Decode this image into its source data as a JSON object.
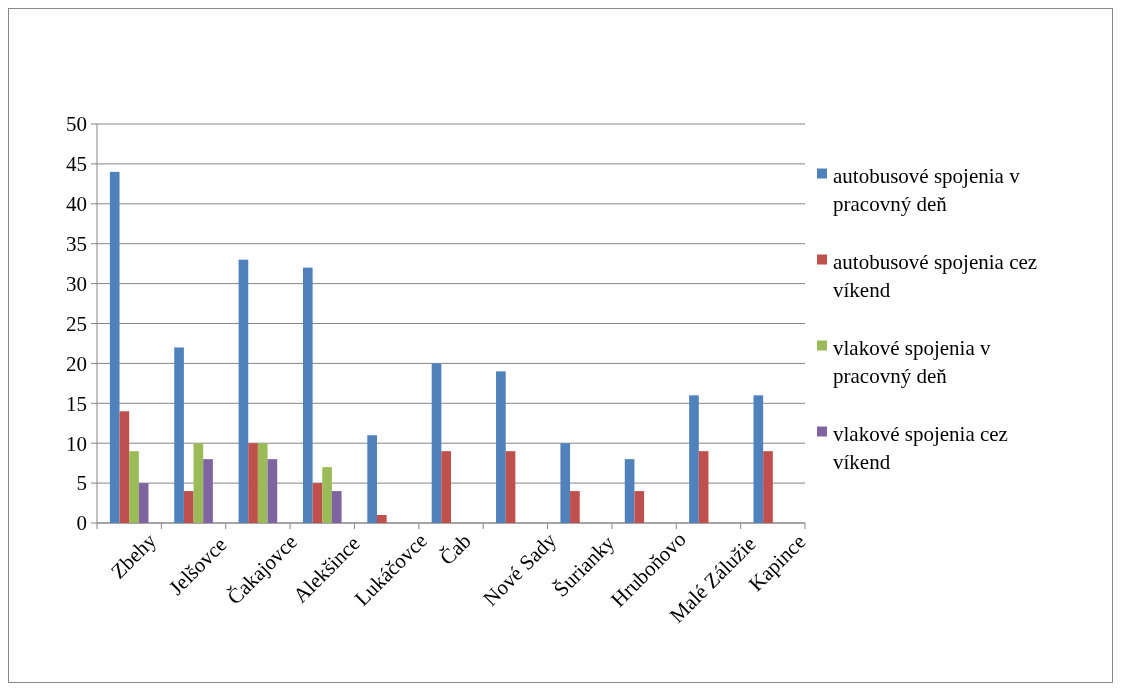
{
  "chart_data": {
    "type": "bar",
    "categories": [
      "Zbehy",
      "Jelšovce",
      "Čakajovce",
      "Alekšince",
      "Lukáčovce",
      "Čab",
      "Nové Sady",
      "Šurianky",
      "Hruboňovo",
      "Malé Zálužie",
      "Kapince"
    ],
    "series": [
      {
        "name": "autobusové spojenia  v pracovný deň",
        "color": "#4f81bd",
        "values": [
          44,
          22,
          33,
          32,
          11,
          20,
          19,
          10,
          8,
          16,
          16
        ]
      },
      {
        "name": "autobusové spojenia  cez víkend",
        "color": "#c0504d",
        "values": [
          14,
          4,
          10,
          5,
          1,
          9,
          9,
          4,
          4,
          9,
          9
        ]
      },
      {
        "name": "vlakové spojenia v pracovný deň",
        "color": "#9bbb59",
        "values": [
          9,
          10,
          10,
          7,
          0,
          0,
          0,
          0,
          0,
          0,
          0
        ]
      },
      {
        "name": "vlakové spojenia cez víkend",
        "color": "#8064a2",
        "values": [
          5,
          8,
          8,
          4,
          0,
          0,
          0,
          0,
          0,
          0,
          0
        ]
      }
    ],
    "ylim": [
      0,
      50
    ],
    "yticks": [
      0,
      5,
      10,
      15,
      20,
      25,
      30,
      35,
      40,
      45,
      50
    ],
    "grid": "y",
    "legend": "right"
  }
}
